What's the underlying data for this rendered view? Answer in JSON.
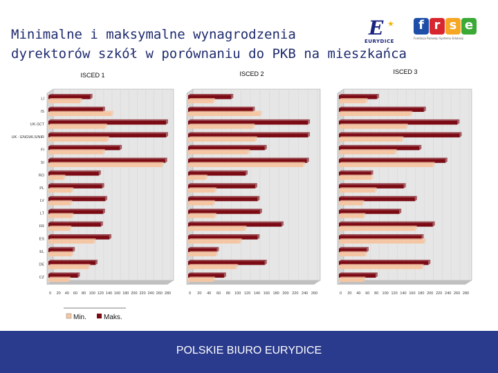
{
  "header": {
    "title_line1": "Minimalne i maksymalne wynagrodzenia",
    "title_line2": "dyrektorów szkół w porównaniu do PKB na mieszkańca"
  },
  "logos": {
    "eurydice_letter": "E",
    "eurydice_word": "EURYDICE",
    "frse_letters": [
      "f",
      "r",
      "s",
      "e"
    ],
    "frse_colors": [
      "#1e4fa8",
      "#d8262e",
      "#f5a623",
      "#3aa935"
    ],
    "frse_subtitle": "Fundacja Rozwoju Systemu Edukacji"
  },
  "footer": {
    "text": "POLSKIE BIURO EURYDICE"
  },
  "colors": {
    "max": "#7b0a14",
    "min": "#f5c6a3",
    "panel": "#c0c0c0",
    "wall": "#e6e6e6"
  },
  "chart_data": [
    {
      "type": "bar",
      "title": "ISCED 1",
      "orientation": "horizontal",
      "categories": [
        "CZ",
        "DE",
        "EL",
        "ES",
        "FR",
        "LT",
        "LV",
        "PL",
        "RO",
        "SI",
        "FI",
        "UK - ENGWLS/NIR",
        "UK-SCT",
        "IS",
        "LI"
      ],
      "x_ticks": [
        0,
        20,
        40,
        60,
        80,
        100,
        120,
        140,
        160,
        180,
        200,
        220,
        240,
        260,
        280
      ],
      "series": [
        {
          "name": "Min.",
          "values": [
            48,
            95,
            55,
            108,
            50,
            55,
            52,
            55,
            36,
            270,
            130,
            140,
            135,
            150,
            75
          ]
        },
        {
          "name": "Maks.",
          "values": [
            70,
            112,
            58,
            145,
            125,
            130,
            135,
            128,
            120,
            278,
            170,
            280,
            280,
            130,
            100
          ]
        }
      ],
      "xlim": [
        0,
        280
      ]
    },
    {
      "type": "bar",
      "title": "ISCED 2",
      "orientation": "horizontal",
      "categories": [
        "CZ",
        "DE",
        "EL",
        "ES",
        "FR",
        "LT",
        "LV",
        "PL",
        "RO",
        "SI",
        "FI",
        "UK - ENGWLS/NIR",
        "UK-SCT",
        "IS",
        "LI"
      ],
      "x_ticks": [
        0,
        20,
        40,
        60,
        80,
        100,
        120,
        140,
        160,
        180,
        200,
        220,
        240,
        260
      ],
      "series": [
        {
          "name": "Min.",
          "values": [
            52,
            100,
            58,
            108,
            118,
            55,
            52,
            55,
            36,
            240,
            125,
            140,
            135,
            150,
            52
          ]
        },
        {
          "name": "Maks.",
          "values": [
            75,
            160,
            60,
            145,
            195,
            150,
            145,
            140,
            120,
            248,
            160,
            250,
            250,
            135,
            90
          ]
        }
      ],
      "xlim": [
        0,
        260
      ]
    },
    {
      "type": "bar",
      "title": "ISCED 3",
      "orientation": "horizontal",
      "categories": [
        "CZ",
        "DE",
        "EL",
        "ES",
        "FR",
        "LT",
        "LV",
        "PL",
        "RO",
        "SI",
        "FI",
        "UK - ENGWLS/NIR",
        "UK-SCT",
        "IS",
        "LI"
      ],
      "x_ticks": [
        0,
        20,
        40,
        60,
        80,
        100,
        120,
        140,
        160,
        180,
        200,
        220,
        240,
        260,
        280
      ],
      "series": [
        {
          "name": "Min.",
          "values": [
            55,
            185,
            58,
            190,
            170,
            55,
            52,
            80,
            72,
            210,
            125,
            140,
            150,
            160,
            60
          ]
        },
        {
          "name": "Maks.",
          "values": [
            82,
            200,
            62,
            185,
            210,
            135,
            170,
            145,
            72,
            238,
            180,
            270,
            265,
            190,
            85
          ]
        }
      ],
      "xlim": [
        0,
        280
      ]
    }
  ],
  "legend": {
    "min_label": "Min.",
    "max_label": "Maks."
  }
}
